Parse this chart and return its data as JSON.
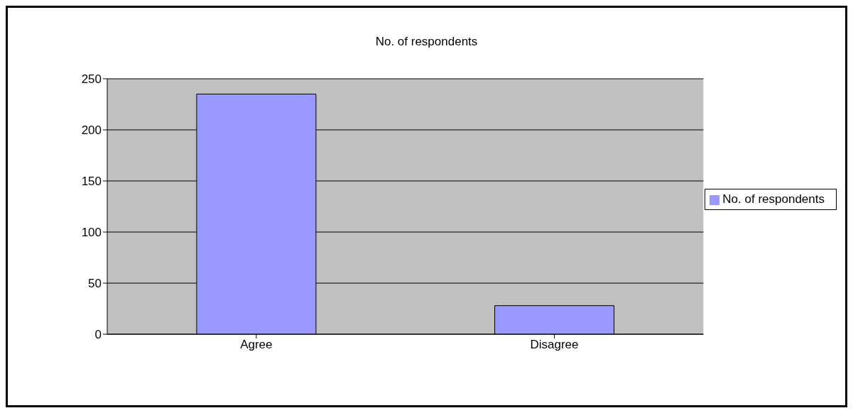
{
  "chart_data": {
    "type": "bar",
    "title": "No. of respondents",
    "categories": [
      "Agree",
      "Disagree"
    ],
    "series": [
      {
        "name": "No. of respondents",
        "color": "#9999ff",
        "values": [
          235,
          28
        ]
      }
    ],
    "ylim": [
      0,
      250
    ],
    "yticks": [
      0,
      50,
      100,
      150,
      200,
      250
    ],
    "grid": "y",
    "legend": "right"
  }
}
